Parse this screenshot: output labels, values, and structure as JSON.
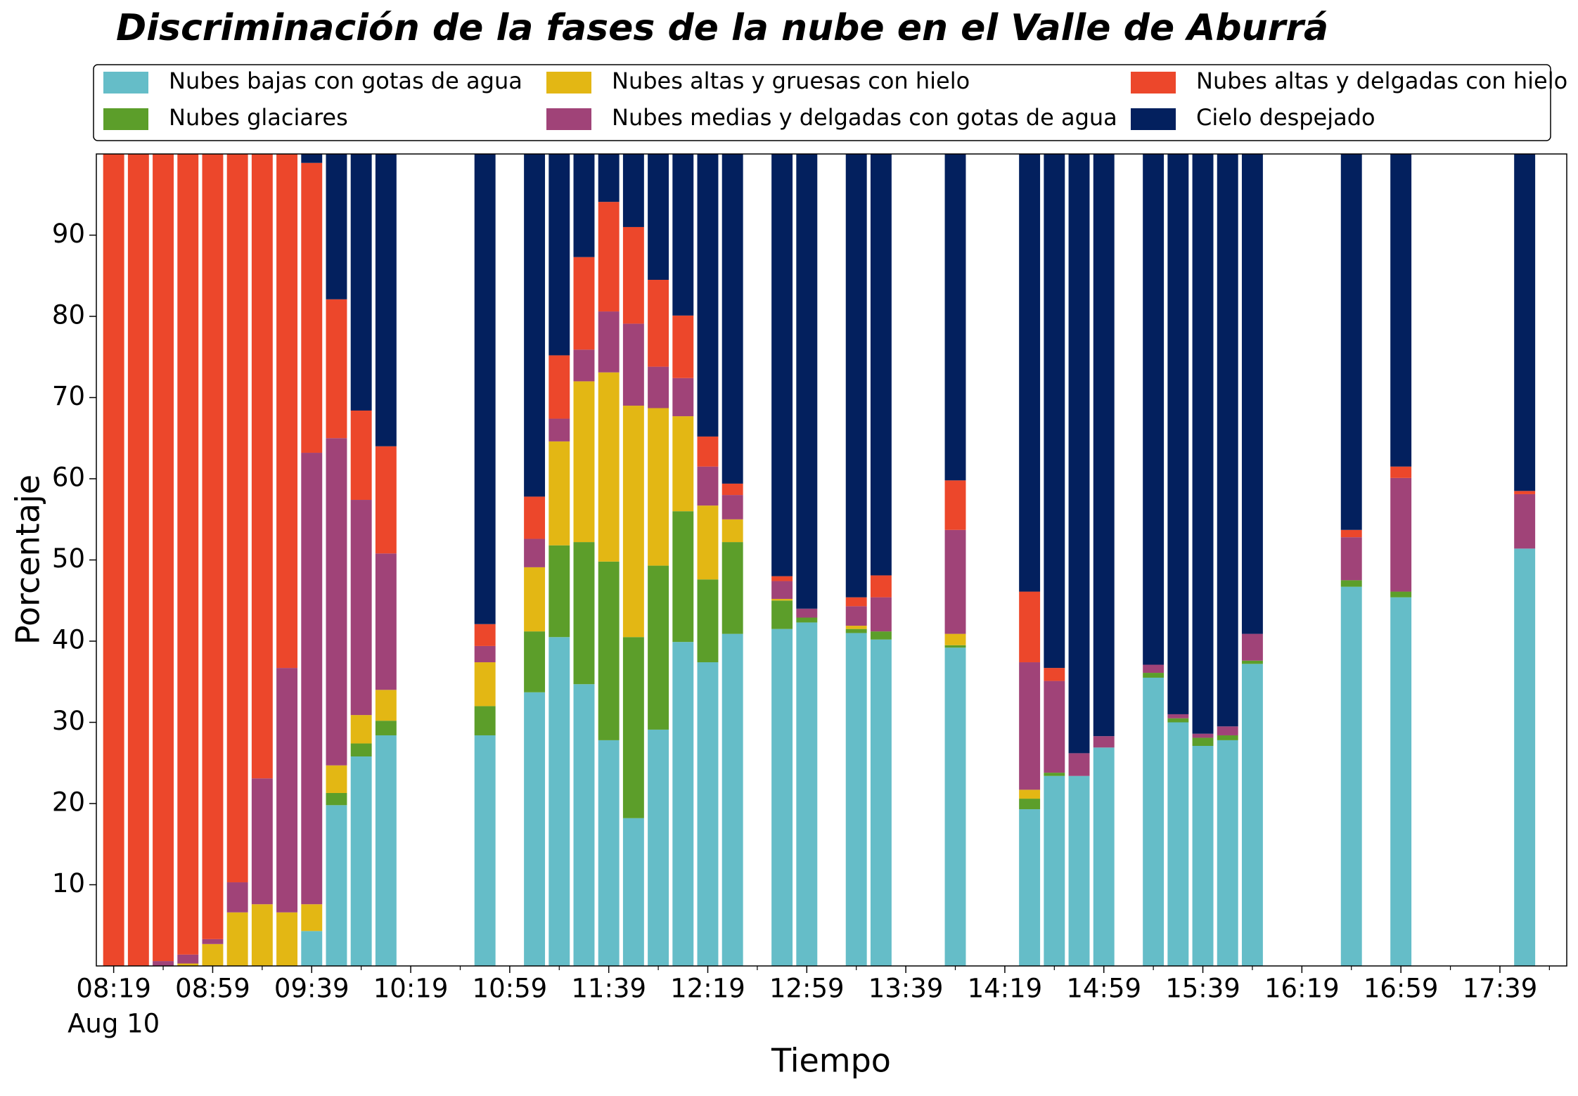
{
  "chart_data": {
    "type": "stacked_bar",
    "title": "Discriminación de la fases de la nube en el Valle de Aburrá",
    "x_label": "Tiempo",
    "y_label": "Porcentaje",
    "x_date_label": "Aug 10",
    "x": [
      "08:19",
      "08:29",
      "08:39",
      "08:49",
      "08:59",
      "09:09",
      "09:19",
      "09:29",
      "09:39",
      "09:49",
      "09:59",
      "10:09",
      "10:49",
      "11:09",
      "11:19",
      "11:29",
      "11:39",
      "11:49",
      "11:59",
      "12:09",
      "12:19",
      "12:29",
      "12:49",
      "12:59",
      "13:19",
      "13:29",
      "13:59",
      "14:29",
      "14:39",
      "14:49",
      "14:59",
      "15:19",
      "15:29",
      "15:39",
      "15:49",
      "15:59",
      "16:39",
      "16:59",
      "17:49"
    ],
    "series": [
      {
        "name": "Nubes bajas con gotas de agua",
        "color": "#65bdc8",
        "values": [
          0,
          0,
          0,
          0,
          0,
          0,
          0,
          0,
          4.3,
          19.8,
          25.8,
          28.4,
          28.4,
          33.7,
          40.5,
          34.7,
          27.8,
          18.2,
          29.1,
          39.9,
          37.4,
          40.9,
          41.5,
          42.3,
          41.0,
          40.2,
          39.2,
          19.3,
          23.4,
          23.4,
          26.9,
          35.5,
          30.0,
          27.1,
          27.8,
          37.2,
          46.7,
          45.4,
          51.4
        ]
      },
      {
        "name": "Nubes glaciares",
        "color": "#5c9e2a",
        "values": [
          0,
          0,
          0,
          0,
          0,
          0,
          0,
          0,
          0,
          1.5,
          1.6,
          1.8,
          3.6,
          7.5,
          11.3,
          17.5,
          22.0,
          22.3,
          20.2,
          16.1,
          10.2,
          11.3,
          3.5,
          0.6,
          0.5,
          1.0,
          0.3,
          1.3,
          0.4,
          0,
          0,
          0.6,
          0.5,
          1.0,
          0.6,
          0.4,
          0.8,
          0.7,
          0
        ]
      },
      {
        "name": "Nubes altas y gruesas con hielo",
        "color": "#e3b714",
        "values": [
          0,
          0,
          0,
          0.3,
          2.7,
          6.6,
          7.6,
          6.6,
          3.3,
          3.4,
          3.5,
          3.8,
          5.4,
          7.9,
          12.8,
          19.8,
          23.3,
          28.5,
          19.4,
          11.7,
          9.1,
          2.8,
          0.2,
          0,
          0.4,
          0,
          1.4,
          1.1,
          0,
          0,
          0,
          0,
          0,
          0,
          0,
          0,
          0,
          0,
          0
        ]
      },
      {
        "name": "Nubes medias y delgadas con gotas de agua",
        "color": "#a04378",
        "values": [
          0,
          0,
          0.6,
          1.1,
          0.6,
          3.7,
          15.5,
          30.1,
          55.6,
          40.3,
          26.5,
          16.8,
          2.0,
          3.5,
          2.8,
          3.9,
          7.5,
          10.1,
          5.1,
          4.7,
          4.8,
          3.0,
          2.2,
          1.1,
          2.4,
          4.2,
          12.8,
          15.7,
          11.3,
          2.8,
          1.4,
          1.0,
          0.5,
          0.5,
          1.1,
          3.3,
          5.3,
          14.0,
          6.7
        ]
      },
      {
        "name": "Nubes altas y delgadas con hielo",
        "color": "#ec472b",
        "values": [
          100,
          100,
          99.4,
          98.6,
          96.7,
          89.7,
          76.9,
          63.3,
          35.7,
          17.1,
          11.0,
          13.2,
          2.7,
          5.2,
          7.8,
          11.4,
          13.5,
          11.9,
          10.7,
          7.7,
          3.7,
          1.4,
          0.6,
          0,
          1.1,
          2.7,
          6.1,
          8.7,
          1.6,
          0,
          0,
          0,
          0,
          0,
          0,
          0,
          0.9,
          1.4,
          0.4
        ]
      },
      {
        "name": "Cielo despejado",
        "color": "#03205e",
        "values": [
          0,
          0,
          0,
          0,
          0,
          0,
          0,
          0,
          1.1,
          17.9,
          31.6,
          36.0,
          57.9,
          42.2,
          24.8,
          12.7,
          5.9,
          9.0,
          15.5,
          19.9,
          34.8,
          40.6,
          52.0,
          56.0,
          54.6,
          51.9,
          40.2,
          53.9,
          63.3,
          73.8,
          71.7,
          62.9,
          69.0,
          71.4,
          70.5,
          59.1,
          46.3,
          38.5,
          41.5
        ]
      }
    ],
    "xlim": [
      "08:12",
      "18:06"
    ],
    "xticks": [
      "08:19",
      "08:59",
      "09:39",
      "10:19",
      "10:59",
      "11:39",
      "12:19",
      "12:59",
      "13:39",
      "14:19",
      "14:59",
      "15:39",
      "16:19",
      "16:59",
      "17:39"
    ],
    "xminor_ticks": [
      "08:39",
      "09:19",
      "09:59",
      "10:39",
      "11:19",
      "11:59",
      "12:39",
      "13:19",
      "13:59",
      "14:39",
      "15:19",
      "15:59",
      "16:39",
      "17:19",
      "17:59"
    ],
    "ylim": [
      0,
      100
    ],
    "yticks": [
      10,
      20,
      30,
      40,
      50,
      60,
      70,
      80,
      90
    ],
    "legend": "top"
  }
}
